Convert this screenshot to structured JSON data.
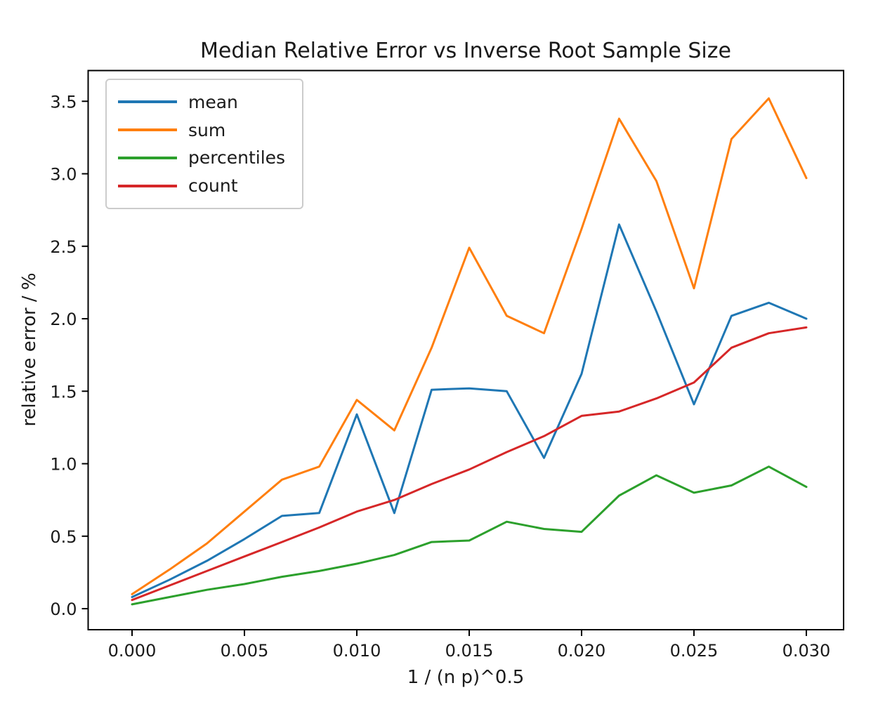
{
  "chart_data": {
    "type": "line",
    "title": "Median Relative Error vs Inverse Root Sample Size",
    "xlabel": "1 / (n p)^0.5",
    "ylabel": "relative error / %",
    "grid": false,
    "legend": {
      "position": "upper left",
      "entries": [
        "mean",
        "sum",
        "percentiles",
        "count"
      ]
    },
    "x": [
      0.0,
      0.00167,
      0.00333,
      0.005,
      0.00667,
      0.00833,
      0.01,
      0.01167,
      0.01333,
      0.015,
      0.01667,
      0.01833,
      0.02,
      0.02167,
      0.02333,
      0.025,
      0.02667,
      0.02833,
      0.03
    ],
    "series": [
      {
        "name": "mean",
        "color": "#1f77b4",
        "values": [
          0.08,
          0.2,
          0.33,
          0.48,
          0.64,
          0.66,
          1.34,
          0.66,
          1.51,
          1.52,
          1.5,
          1.04,
          1.62,
          2.65,
          2.05,
          1.41,
          2.02,
          2.11,
          2.0
        ]
      },
      {
        "name": "sum",
        "color": "#ff7f0e",
        "values": [
          0.1,
          0.27,
          0.45,
          0.67,
          0.89,
          0.98,
          1.44,
          1.23,
          1.8,
          2.49,
          2.02,
          1.9,
          2.62,
          3.38,
          2.95,
          2.21,
          3.24,
          3.52,
          2.97
        ]
      },
      {
        "name": "percentiles",
        "color": "#2ca02c",
        "values": [
          0.03,
          0.08,
          0.13,
          0.17,
          0.22,
          0.26,
          0.31,
          0.37,
          0.46,
          0.47,
          0.6,
          0.55,
          0.53,
          0.78,
          0.92,
          0.8,
          0.85,
          0.98,
          0.84
        ]
      },
      {
        "name": "count",
        "color": "#d62728",
        "values": [
          0.06,
          0.16,
          0.26,
          0.36,
          0.46,
          0.56,
          0.67,
          0.75,
          0.86,
          0.96,
          1.08,
          1.19,
          1.33,
          1.36,
          1.45,
          1.56,
          1.8,
          1.9,
          1.94
        ]
      }
    ],
    "x_ticks": [
      0.0,
      0.005,
      0.01,
      0.015,
      0.02,
      0.025,
      0.03
    ],
    "x_tick_labels": [
      "0.000",
      "0.005",
      "0.010",
      "0.015",
      "0.020",
      "0.025",
      "0.030"
    ],
    "y_ticks": [
      0.0,
      0.5,
      1.0,
      1.5,
      2.0,
      2.5,
      3.0,
      3.5
    ],
    "y_tick_labels": [
      "0.0",
      "0.5",
      "1.0",
      "1.5",
      "2.0",
      "2.5",
      "3.0",
      "3.5"
    ],
    "xlim": [
      -0.001953,
      0.031657
    ],
    "ylim": [
      -0.145,
      3.712
    ]
  }
}
